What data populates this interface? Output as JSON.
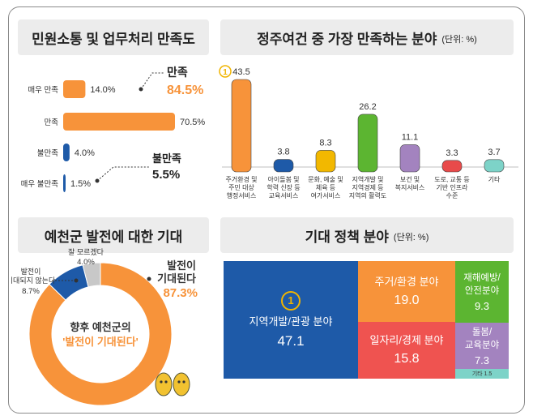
{
  "panels": {
    "satisfaction": {
      "title": "민원소통 및 업무처리 만족도"
    },
    "favorite": {
      "title": "정주여건 중 가장 만족하는 분야",
      "unit": "(단위: %)"
    },
    "expectation": {
      "title": "예천군 발전에 대한 기대"
    },
    "policy": {
      "title": "기대 정책 분야",
      "unit": "(단위: %)"
    }
  },
  "chart_data": [
    {
      "type": "bar",
      "orientation": "horizontal",
      "title": "민원소통 및 업무처리 만족도",
      "categories": [
        "매우 만족",
        "만족",
        "불만족",
        "매우 불만족"
      ],
      "values": [
        14.0,
        70.5,
        4.0,
        1.5
      ],
      "value_labels": [
        "14.0%",
        "70.5%",
        "4.0%",
        "1.5%"
      ],
      "colors": [
        "#f7933a",
        "#f7933a",
        "#1e5aa8",
        "#1e5aa8"
      ],
      "annotations": [
        {
          "label": "만족",
          "value": "84.5%"
        },
        {
          "label": "불만족",
          "value": "5.5%"
        }
      ]
    },
    {
      "type": "bar",
      "title": "정주여건 중 가장 만족하는 분야",
      "categories": [
        "주거환경 및\n주민 대상\n행정서비스",
        "아이돌봄 및\n학력 신장 등\n교육서비스",
        "문화, 예술 및\n체육 등\n여가서비스",
        "지역개발 및\n지역경제 등\n지역의 활력도",
        "보건 및\n복지서비스",
        "도로, 교통 등\n기반 인프라\n수준",
        "기타"
      ],
      "values": [
        43.5,
        3.8,
        8.3,
        26.2,
        11.1,
        3.3,
        3.7
      ],
      "value_labels": [
        "43.5",
        "3.8",
        "8.3",
        "26.2",
        "11.1",
        "3.3",
        "3.7"
      ],
      "colors": [
        "#f7933a",
        "#1e5aa8",
        "#f2b800",
        "#5cb531",
        "#a383bf",
        "#e84a4a",
        "#7dd3c8"
      ],
      "rank_badge": "1"
    },
    {
      "type": "pie",
      "title": "예천군 발전에 대한 기대",
      "labels": [
        "발전이\n기대된다",
        "발전이\n기대되지 않는다",
        "잘 모르겠다"
      ],
      "values": [
        87.3,
        8.7,
        4.0
      ],
      "value_labels": [
        "87.3%",
        "8.7%",
        "4.0%"
      ],
      "colors": [
        "#f7933a",
        "#1e5aa8",
        "#c8c8c8"
      ],
      "center_text": [
        "향후 예천군의",
        "'발전이 기대된다'"
      ]
    },
    {
      "type": "treemap",
      "title": "기대 정책 분야",
      "labels": [
        "지역개발/관광 분야",
        "주거/환경 분야",
        "일자리/경제 분야",
        "재해예방/\n안전분야",
        "돌봄/\n교육분야",
        "기타"
      ],
      "values": [
        47.1,
        19.0,
        15.8,
        9.3,
        7.3,
        1.5
      ],
      "value_labels": [
        "47.1",
        "19.0",
        "15.8",
        "9.3",
        "7.3",
        "1.5"
      ],
      "colors": [
        "#1e5aa8",
        "#f7933a",
        "#ef5350",
        "#5cb531",
        "#a383bf",
        "#7dd3c8"
      ],
      "rank_badge": "1"
    }
  ]
}
